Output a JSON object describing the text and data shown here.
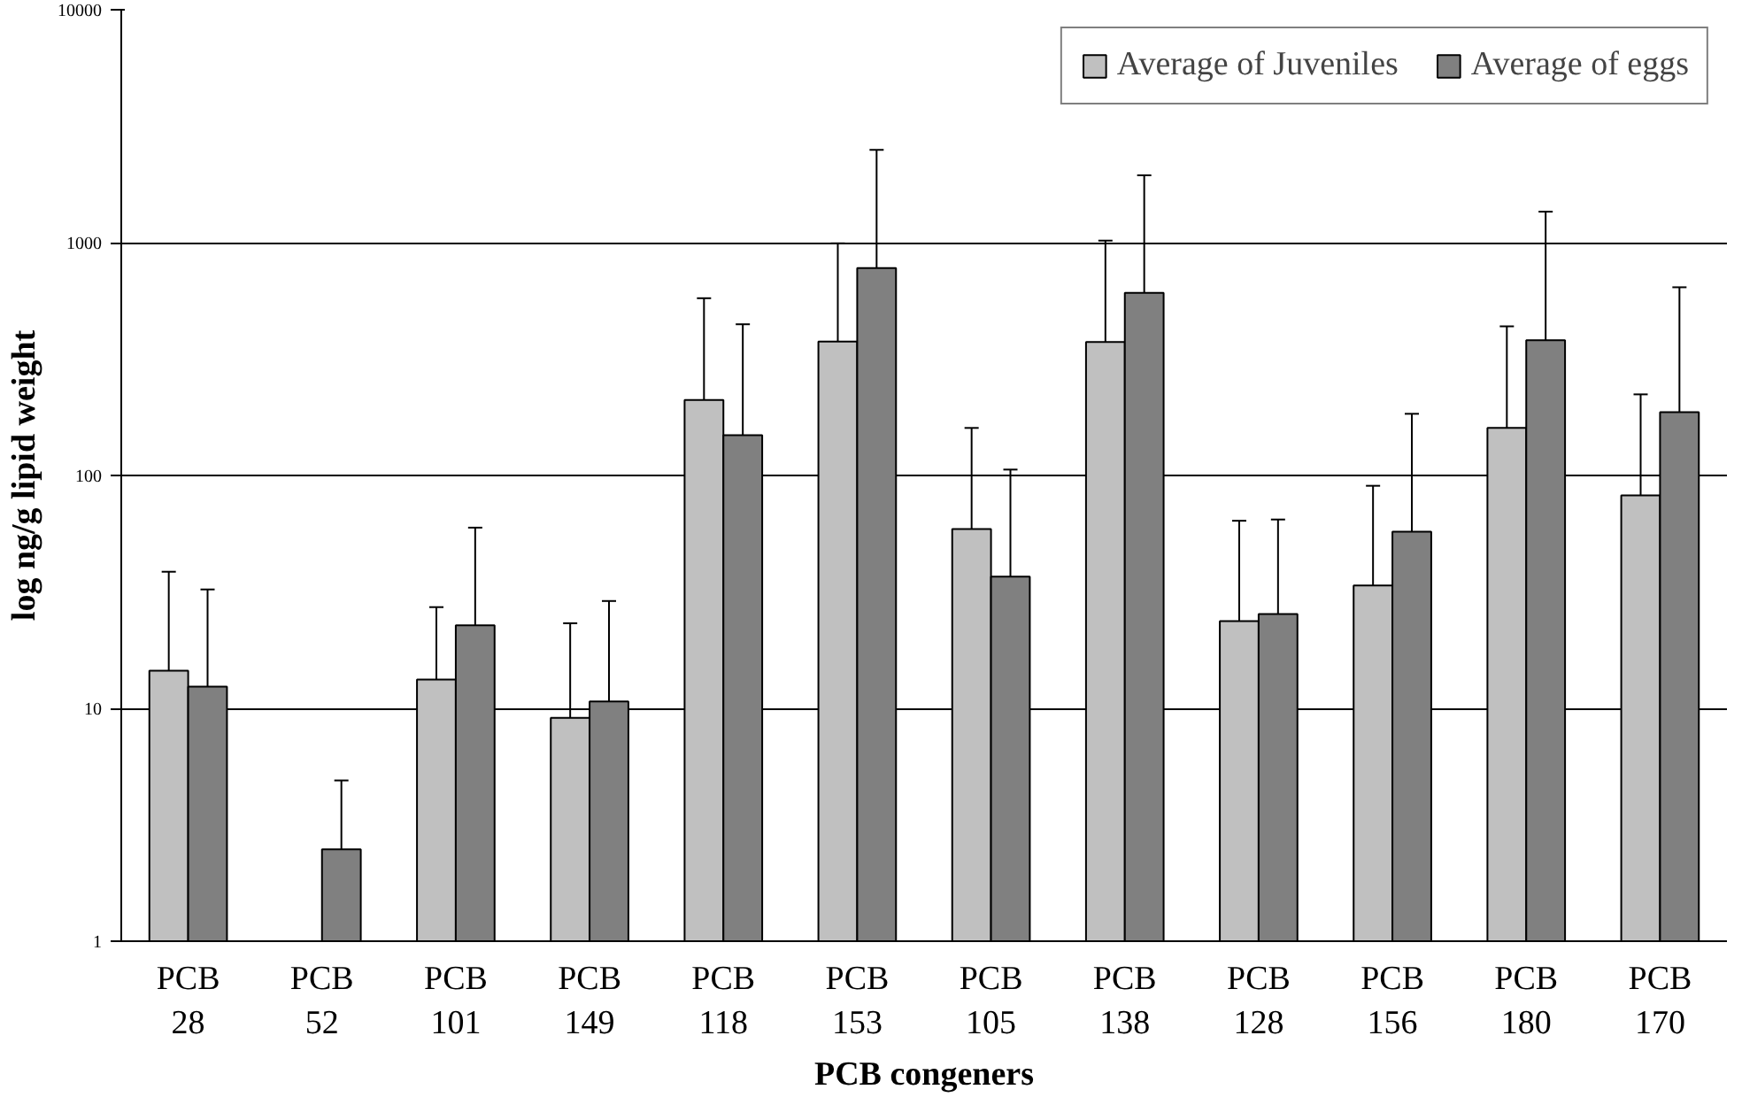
{
  "chart_data": {
    "type": "bar",
    "xlabel": "PCB congeners",
    "ylabel": "log ng/g lipid weight",
    "categories": [
      "PCB\n28",
      "PCB\n52",
      "PCB\n101",
      "PCB\n149",
      "PCB\n118",
      "PCB\n153",
      "PCB\n105",
      "PCB\n138",
      "PCB\n128",
      "PCB\n156",
      "PCB\n180",
      "PCB\n170"
    ],
    "series": [
      {
        "name": "Average of Juveniles",
        "color": "#c0c0c0",
        "values": [
          14.5,
          null,
          13.3,
          9.1,
          211,
          376,
          58.9,
          374,
          23.7,
          33.7,
          160,
          82.1
        ],
        "errors": [
          [
            14.5,
            38.6
          ],
          null,
          [
            13.3,
            27.2
          ],
          [
            9.1,
            23.2
          ],
          [
            211,
            577
          ],
          [
            376,
            993
          ],
          [
            58.9,
            160
          ],
          [
            374,
            1020
          ],
          [
            23.7,
            63.9
          ],
          [
            33.7,
            90.3
          ],
          [
            160,
            437
          ],
          [
            82.1,
            223
          ]
        ]
      },
      {
        "name": "Average of eggs",
        "color": "#808080",
        "values": [
          12.4,
          2.48,
          22.7,
          10.7,
          149,
          778,
          36.8,
          609,
          25.4,
          57.3,
          381,
          187
        ],
        "errors": [
          [
            12.4,
            32.4
          ],
          [
            2.48,
            4.9
          ],
          [
            22.7,
            59.7
          ],
          [
            10.7,
            28.9
          ],
          [
            149,
            446
          ],
          [
            778,
            2502
          ],
          [
            36.8,
            106
          ],
          [
            609,
            1945
          ],
          [
            25.4,
            64.7
          ],
          [
            57.3,
            184
          ],
          [
            381,
            1358
          ],
          [
            187,
            643
          ]
        ]
      }
    ],
    "log": "y",
    "ylim": [
      1,
      10000
    ],
    "yticks": [
      1,
      10,
      100,
      1000,
      10000
    ],
    "grid": "y",
    "legend": "top right"
  }
}
